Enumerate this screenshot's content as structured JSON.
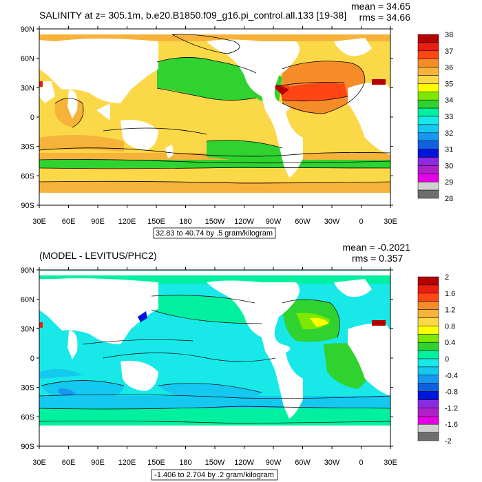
{
  "panels": [
    {
      "title": "SALINITY at z= 305.1m, b.e20.B1850.f09_g16.pi_control.all.133 [19-38]",
      "stat_mean": "mean = 34.65",
      "stat_rms": "rms = 34.66",
      "range_note": "32.83 to 40.74 by .5 gram/kilogram",
      "lat_labels": [
        "90N",
        "60N",
        "30N",
        "0",
        "30S",
        "60S",
        "90S"
      ],
      "lon_labels": [
        "30E",
        "60E",
        "90E",
        "120E",
        "150E",
        "180",
        "150W",
        "120W",
        "90W",
        "60W",
        "30W",
        "0",
        "30E"
      ],
      "colorbar": {
        "labels": [
          "38",
          "37",
          "36",
          "35",
          "34",
          "33",
          "32",
          "31",
          "30",
          "29",
          "28"
        ],
        "colors": [
          "#b40000",
          "#e81e10",
          "#ff4614",
          "#f58c28",
          "#f7b23a",
          "#fbd848",
          "#ffff00",
          "#7fe800",
          "#2fd22f",
          "#00f0a0",
          "#18e8e8",
          "#14c8f0",
          "#1896f0",
          "#1060e0",
          "#0014e0",
          "#8a2be2",
          "#b020c8",
          "#e600e6",
          "#d0d0d0",
          "#6e6e6e"
        ]
      }
    },
    {
      "title": "(MODEL - LEVITUS/PHC2)",
      "stat_mean": "mean = -0.2021",
      "stat_rms": "rms = 0.357",
      "range_note": "-1.406 to 2.704 by .2 gram/kilogram",
      "lat_labels": [
        "90N",
        "60N",
        "30N",
        "0",
        "30S",
        "60S",
        "90S"
      ],
      "lon_labels": [
        "30E",
        "60E",
        "90E",
        "120E",
        "150E",
        "180",
        "150W",
        "120W",
        "90W",
        "60W",
        "30W",
        "0",
        "30E"
      ],
      "colorbar": {
        "labels": [
          "2",
          "1.6",
          "1.2",
          "0.8",
          "0.4",
          "0",
          "-0.4",
          "-0.8",
          "-1.2",
          "-1.6",
          "-2"
        ],
        "colors": [
          "#b40000",
          "#e81e10",
          "#ff4614",
          "#f58c28",
          "#f7b23a",
          "#fbd848",
          "#ffff00",
          "#7fe800",
          "#2fd22f",
          "#00f0a0",
          "#18e8e8",
          "#14c8f0",
          "#1896f0",
          "#1060e0",
          "#0014e0",
          "#8a2be2",
          "#b020c8",
          "#e600e6",
          "#d0d0d0",
          "#6e6e6e"
        ]
      }
    }
  ]
}
